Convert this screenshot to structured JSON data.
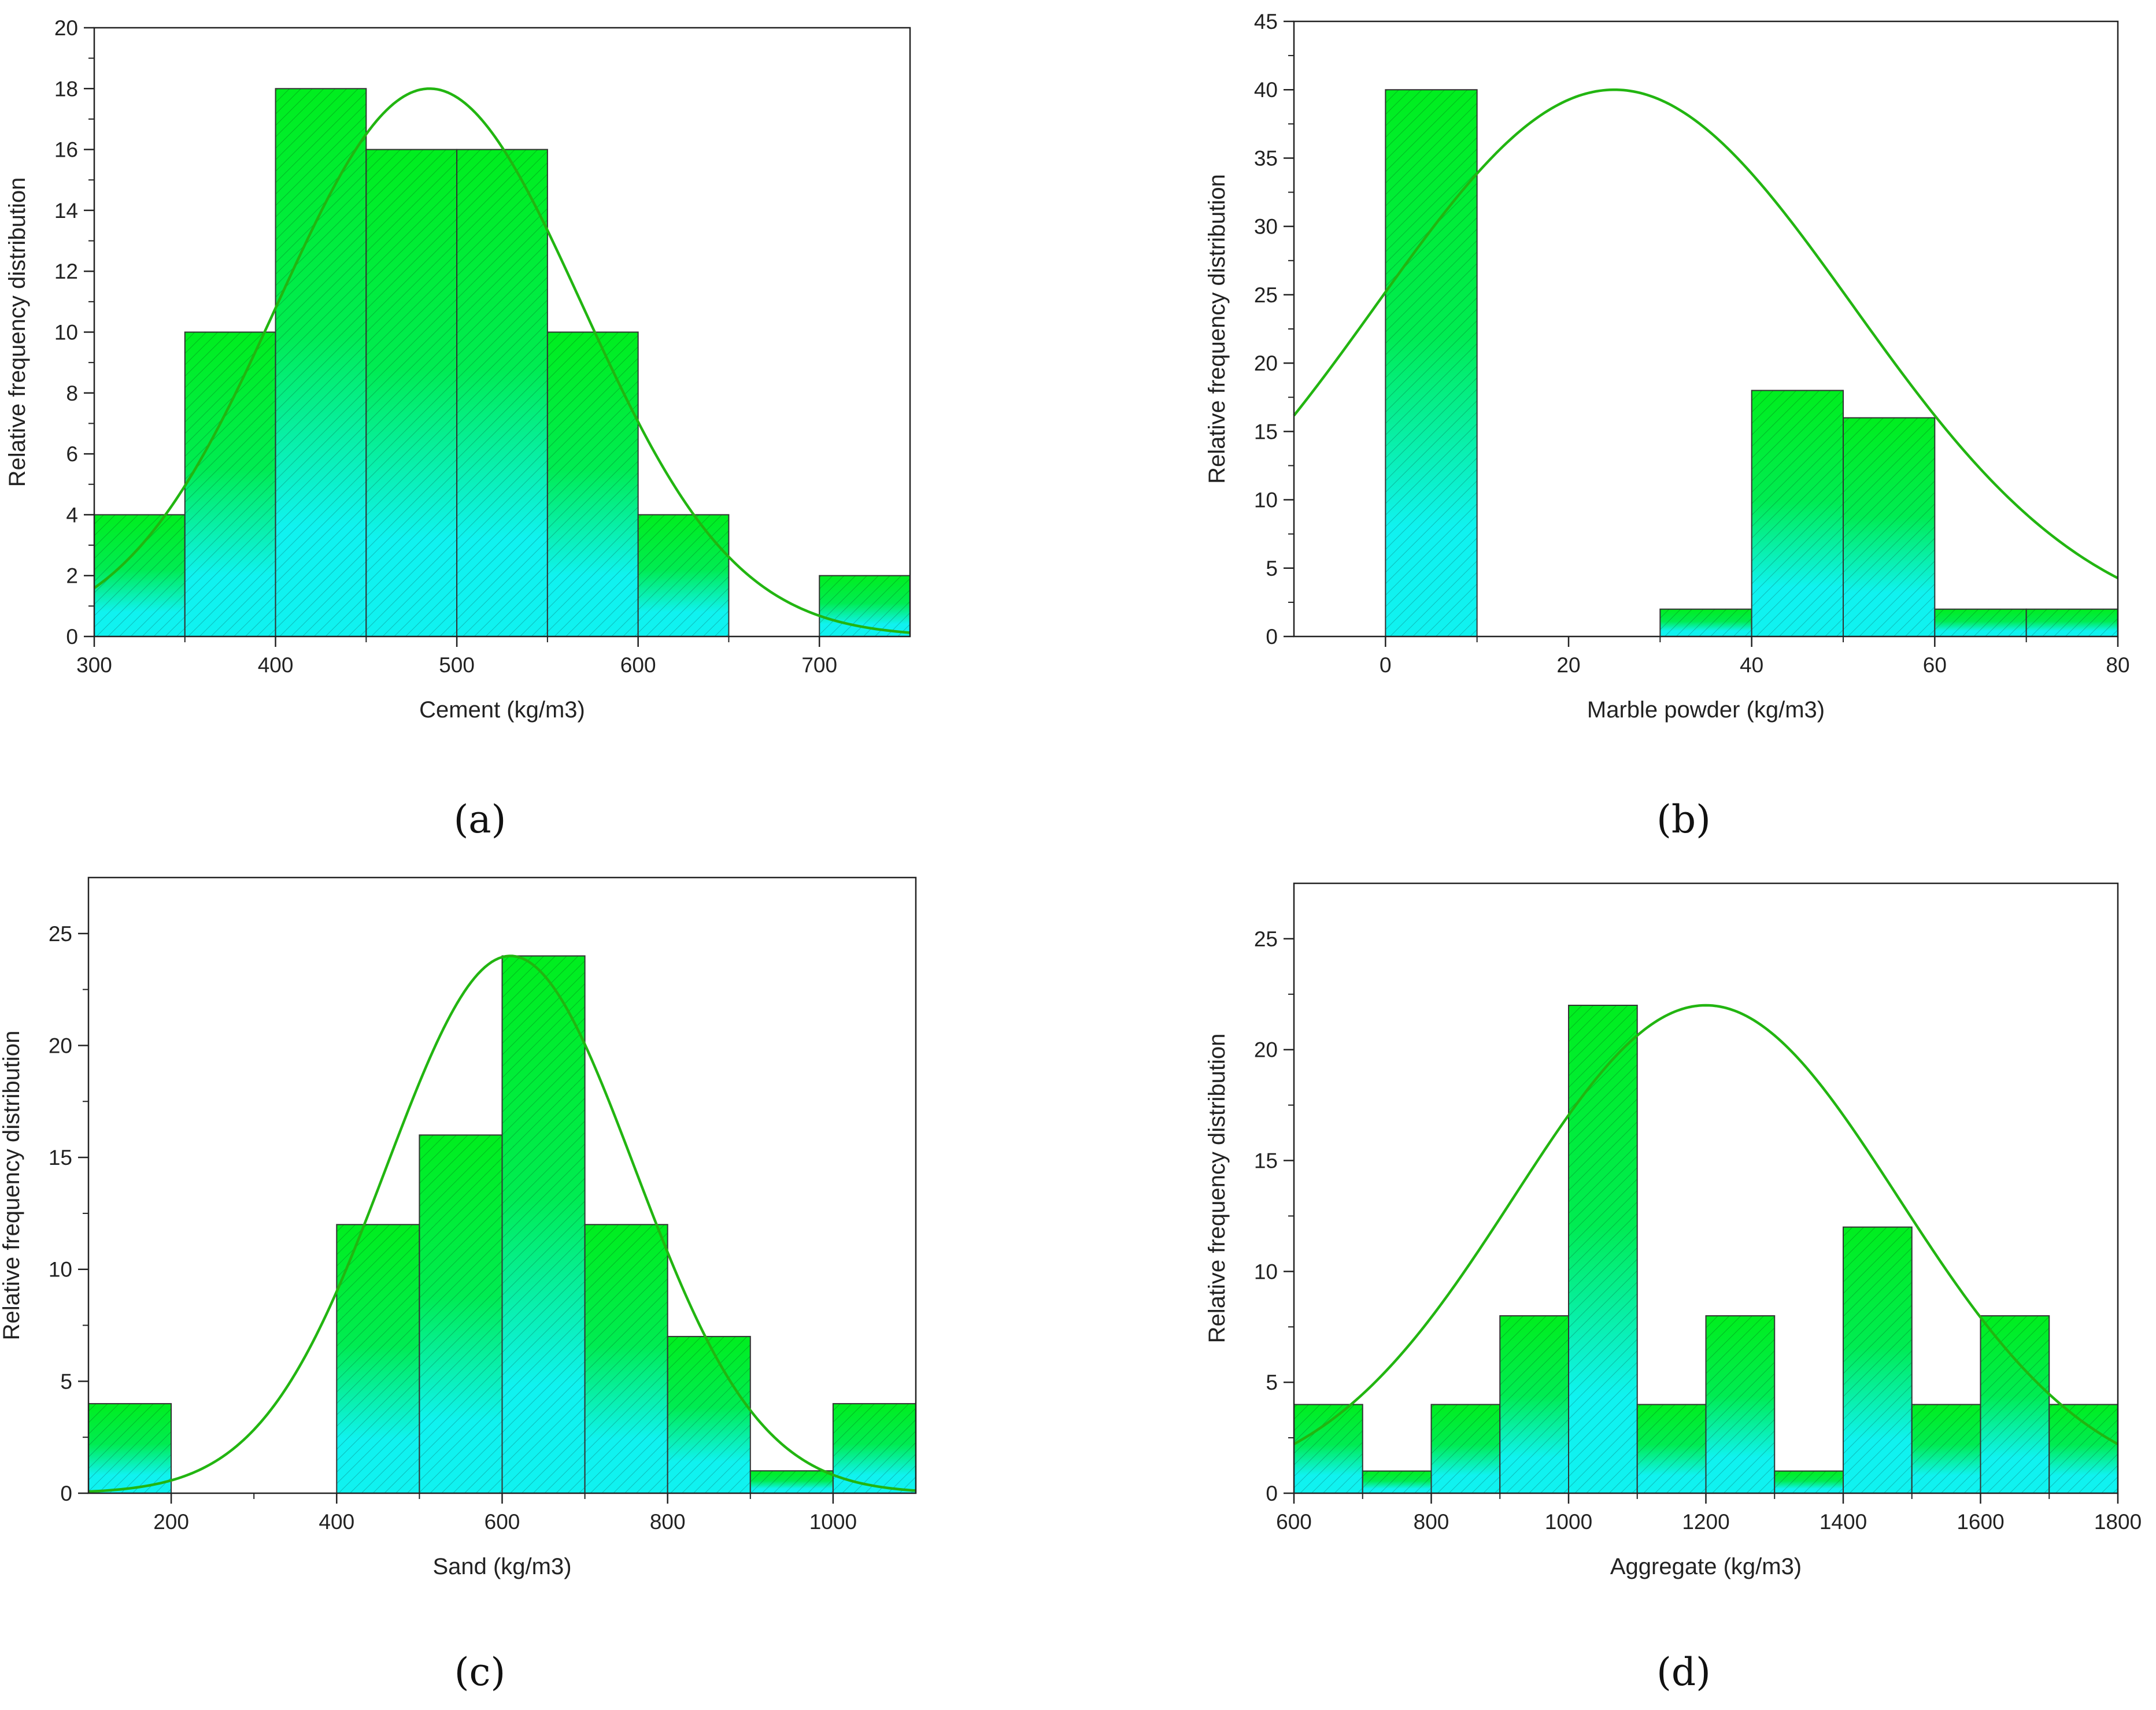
{
  "colors": {
    "bar_top": "#00ee1e",
    "bar_bottom": "#10f2f0",
    "curve": "#22b511",
    "axis": "#222222"
  },
  "chart_data": [
    {
      "id": "a",
      "type": "bar",
      "caption": "(a)",
      "xlabel": "Cement (kg/m3)",
      "ylabel": "Relative frequency distribution",
      "xlim": [
        300,
        750
      ],
      "ylim": [
        0,
        20
      ],
      "xticks": [
        300,
        400,
        500,
        600,
        700
      ],
      "yticks": [
        0,
        2,
        4,
        6,
        8,
        10,
        12,
        14,
        16,
        18,
        20
      ],
      "bins": [
        {
          "from": 300,
          "to": 350,
          "value": 4
        },
        {
          "from": 350,
          "to": 400,
          "value": 10
        },
        {
          "from": 400,
          "to": 450,
          "value": 18
        },
        {
          "from": 450,
          "to": 500,
          "value": 16
        },
        {
          "from": 500,
          "to": 550,
          "value": 16
        },
        {
          "from": 550,
          "to": 600,
          "value": 10
        },
        {
          "from": 600,
          "to": 650,
          "value": 4
        },
        {
          "from": 700,
          "to": 750,
          "value": 2
        }
      ],
      "normal_curve": {
        "mean": 485,
        "sd": 84,
        "peak": 18
      }
    },
    {
      "id": "b",
      "type": "bar",
      "caption": "(b)",
      "xlabel": "Marble powder (kg/m3)",
      "ylabel": "Relative frequency distribution",
      "xlim": [
        -10,
        80
      ],
      "ylim": [
        0,
        45
      ],
      "xticks": [
        0,
        20,
        40,
        60,
        80
      ],
      "yticks": [
        0,
        5,
        10,
        15,
        20,
        25,
        30,
        35,
        40,
        45
      ],
      "bins": [
        {
          "from": 0,
          "to": 10,
          "value": 40
        },
        {
          "from": 30,
          "to": 40,
          "value": 2
        },
        {
          "from": 40,
          "to": 50,
          "value": 18
        },
        {
          "from": 50,
          "to": 60,
          "value": 16
        },
        {
          "from": 60,
          "to": 70,
          "value": 2
        },
        {
          "from": 70,
          "to": 80,
          "value": 2
        }
      ],
      "normal_curve": {
        "mean": 25,
        "sd": 26,
        "peak": 40
      }
    },
    {
      "id": "c",
      "type": "bar",
      "caption": "(c)",
      "xlabel": "Sand (kg/m3)",
      "ylabel": "Relative frequency distribution",
      "xlim": [
        100,
        1100
      ],
      "ylim": [
        0,
        27.5
      ],
      "xticks": [
        200,
        400,
        600,
        800,
        1000
      ],
      "yticks": [
        0,
        5,
        10,
        15,
        20,
        25
      ],
      "bins": [
        {
          "from": 100,
          "to": 200,
          "value": 4
        },
        {
          "from": 400,
          "to": 500,
          "value": 12
        },
        {
          "from": 500,
          "to": 600,
          "value": 16
        },
        {
          "from": 600,
          "to": 700,
          "value": 24
        },
        {
          "from": 700,
          "to": 800,
          "value": 12
        },
        {
          "from": 800,
          "to": 900,
          "value": 7
        },
        {
          "from": 900,
          "to": 1000,
          "value": 1
        },
        {
          "from": 1000,
          "to": 1100,
          "value": 4
        }
      ],
      "normal_curve": {
        "mean": 610,
        "sd": 150,
        "peak": 24
      }
    },
    {
      "id": "d",
      "type": "bar",
      "caption": "(d)",
      "xlabel": "Aggregate (kg/m3)",
      "ylabel": "Relative frequency distribution",
      "xlim": [
        600,
        1800
      ],
      "ylim": [
        0,
        27.5
      ],
      "xticks": [
        600,
        800,
        1000,
        1200,
        1400,
        1600,
        1800
      ],
      "yticks": [
        0,
        5,
        10,
        15,
        20,
        25
      ],
      "bins": [
        {
          "from": 600,
          "to": 700,
          "value": 4
        },
        {
          "from": 700,
          "to": 800,
          "value": 1
        },
        {
          "from": 800,
          "to": 900,
          "value": 4
        },
        {
          "from": 900,
          "to": 1000,
          "value": 8
        },
        {
          "from": 1000,
          "to": 1100,
          "value": 22
        },
        {
          "from": 1100,
          "to": 1200,
          "value": 4
        },
        {
          "from": 1200,
          "to": 1300,
          "value": 8
        },
        {
          "from": 1300,
          "to": 1400,
          "value": 1
        },
        {
          "from": 1400,
          "to": 1500,
          "value": 12
        },
        {
          "from": 1500,
          "to": 1600,
          "value": 4
        },
        {
          "from": 1600,
          "to": 1700,
          "value": 8
        },
        {
          "from": 1700,
          "to": 1800,
          "value": 4
        }
      ],
      "normal_curve": {
        "mean": 1200,
        "sd": 280,
        "peak": 22
      }
    }
  ]
}
